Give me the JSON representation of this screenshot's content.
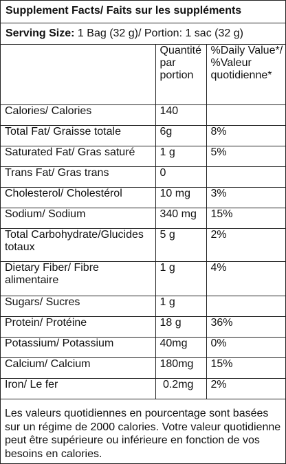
{
  "title": "Supplement Facts/ Faits sur les suppléments",
  "serving": {
    "label": "Serving Size:",
    "value": " 1 Bag (32 g)/ Portion: 1 sac (32 g)"
  },
  "header": {
    "col1": "",
    "col2": "Quantité par portion",
    "col3": "%Daily Value*/ %Valeur quotidienne*"
  },
  "rows": [
    {
      "name": "Calories/ Calories",
      "amount": "140",
      "dv": ""
    },
    {
      "name": "Total Fat/ Graisse totale",
      "amount": "6g",
      "dv": "8%"
    },
    {
      "name": "Saturated Fat/ Gras saturé",
      "amount": "1 g",
      "dv": "5%"
    },
    {
      "name": "Trans Fat/ Gras trans",
      "amount": "0",
      "dv": ""
    },
    {
      "name": "Cholesterol/ Cholestérol",
      "amount": "10 mg",
      "dv": "3%"
    },
    {
      "name": "Sodium/ Sodium",
      "amount": "340 mg",
      "dv": "15%"
    },
    {
      "name": "Total Carbohydrate/Glucides totaux",
      "amount": "5 g",
      "dv": "2%"
    },
    {
      "name": "Dietary Fiber/ Fibre alimentaire",
      "amount": "1 g",
      "dv": "4%"
    },
    {
      "name": "Sugars/ Sucres",
      "amount": "1 g",
      "dv": ""
    },
    {
      "name": "Protein/ Protéine",
      "amount": "18 g",
      "dv": "36%"
    },
    {
      "name": "Potassium/ Potassium",
      "amount": "40mg",
      "dv": "0%"
    },
    {
      "name": "Calcium/ Calcium",
      "amount": "180mg",
      "dv": "15%"
    },
    {
      "name": "Iron/ Le fer",
      "amount": " 0.2mg",
      "dv": "2%"
    }
  ],
  "footnote": "Les valeurs quotidiennes en pourcentage sont basées sur un régime de 2000 calories. Votre valeur quotidienne peut être supérieure ou inférieure en fonction de vos besoins en calories."
}
